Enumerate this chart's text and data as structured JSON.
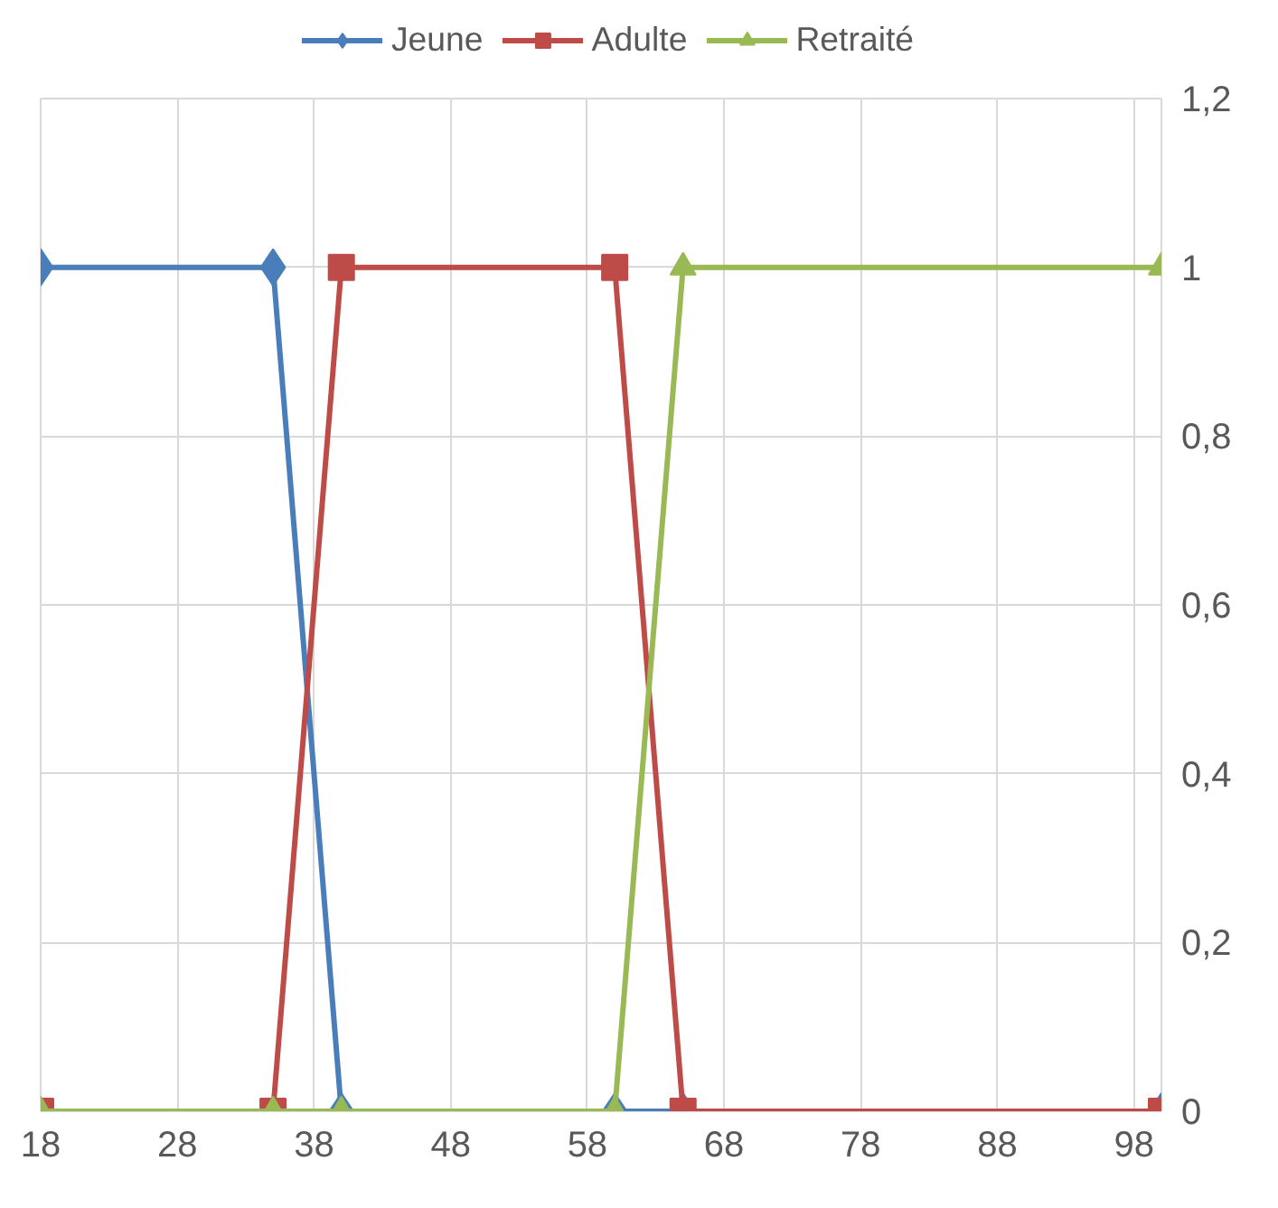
{
  "chart_data": {
    "type": "line",
    "x": [
      18,
      35,
      40,
      60,
      65,
      100
    ],
    "series": [
      {
        "name": "Jeune",
        "color": "#4a7ebb",
        "marker": "diamond",
        "values": [
          1,
          1,
          0,
          0,
          0,
          0
        ]
      },
      {
        "name": "Adulte",
        "color": "#be4b48",
        "marker": "square",
        "values": [
          0,
          0,
          1,
          1,
          0,
          0
        ]
      },
      {
        "name": "Retraité",
        "color": "#98b954",
        "marker": "triangle",
        "values": [
          0,
          0,
          0,
          0,
          1,
          1
        ]
      }
    ],
    "xlim": [
      18,
      100
    ],
    "xticks": [
      18,
      28,
      38,
      48,
      58,
      68,
      78,
      88,
      98
    ],
    "ylim": [
      0,
      1.2
    ],
    "yticks": [
      0,
      {
        "value": 0.2,
        "label": "0,2"
      },
      {
        "value": 0.4,
        "label": "0,4"
      },
      {
        "value": 0.6,
        "label": "0,6"
      },
      {
        "value": 0.8,
        "label": "0,8"
      },
      1,
      {
        "value": 1.2,
        "label": "1,2"
      }
    ],
    "grid": true,
    "legend": "top",
    "line_style": "solid"
  }
}
